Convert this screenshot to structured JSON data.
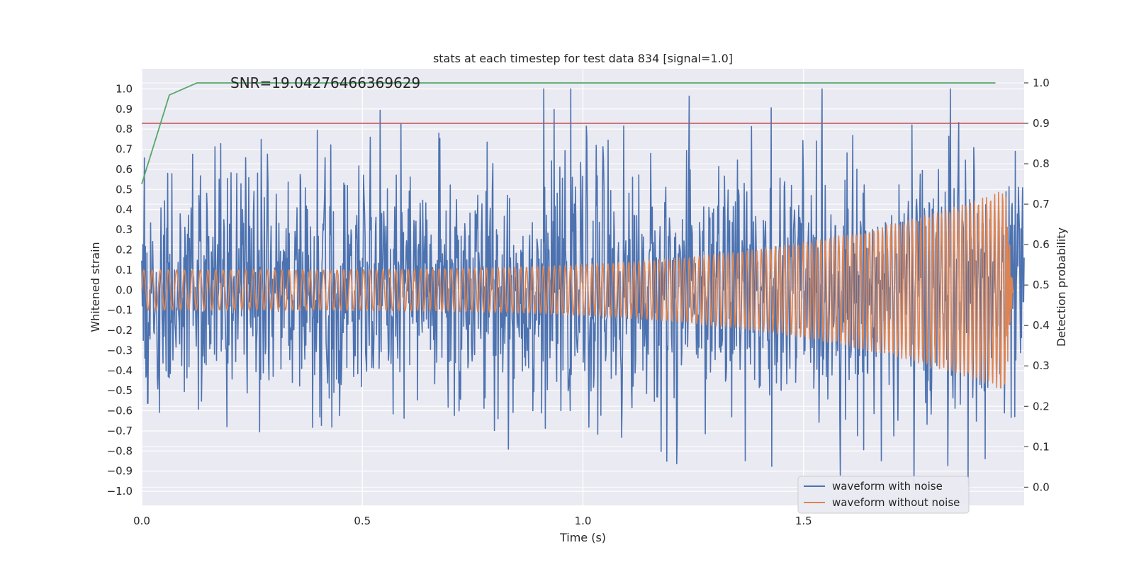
{
  "chart_data": {
    "type": "line",
    "title": "stats at each timestep for test data 834 [signal=1.0]",
    "xlabel": "Time (s)",
    "ylabel": "Whitened strain",
    "y2label": "Detection probability",
    "annotation": "SNR=19.04276466369629",
    "xlim": [
      0.0,
      2.0
    ],
    "ylim": [
      -1.07,
      1.1
    ],
    "y2lim": [
      -0.045,
      1.035
    ],
    "x_ticks": [
      0.0,
      0.5,
      1.0,
      1.5
    ],
    "x_tick_labels": [
      "0.0",
      "0.5",
      "1.0",
      "1.5"
    ],
    "y_ticks": [
      1.0,
      0.9,
      0.8,
      0.7,
      0.6,
      0.5,
      0.4,
      0.3,
      0.2,
      0.1,
      0.0,
      -0.1,
      -0.2,
      -0.3,
      -0.4,
      -0.5,
      -0.6,
      -0.7,
      -0.8,
      -0.9,
      -1.0
    ],
    "y_tick_labels": [
      "1.0",
      "0.9",
      "0.8",
      "0.7",
      "0.6",
      "0.5",
      "0.4",
      "0.3",
      "0.2",
      "0.1",
      "0.0",
      "−0.1",
      "−0.2",
      "−0.3",
      "−0.4",
      "−0.5",
      "−0.6",
      "−0.7",
      "−0.8",
      "−0.9",
      "−1.0"
    ],
    "y2_ticks": [
      1.0,
      0.9,
      0.8,
      0.7,
      0.6,
      0.5,
      0.4,
      0.3,
      0.2,
      0.1,
      0.0
    ],
    "y2_tick_labels": [
      "1.0",
      "0.9",
      "0.8",
      "0.7",
      "0.6",
      "0.5",
      "0.4",
      "0.3",
      "0.2",
      "0.1",
      "0.0"
    ],
    "threshold": {
      "value": 0.9,
      "axis": "right",
      "color": "#c44e52"
    },
    "series": [
      {
        "name": "waveform with noise",
        "color": "#4c72b0",
        "axis": "left",
        "kind": "noisy-strain",
        "x_start": 0.0,
        "x_end": 2.0,
        "points": 1700,
        "std": 0.3,
        "amplitude_start": 0.1,
        "amplitude_end": 0.32
      },
      {
        "name": "waveform without noise",
        "color": "#dd8452",
        "axis": "left",
        "kind": "chirp",
        "x_start": 0.0,
        "x_end": 1.958,
        "points": 1800,
        "amplitude_start": 0.1,
        "amplitude_end": 0.5,
        "cycles": 160,
        "ringdown_end": 1.975
      },
      {
        "name": "detection probability",
        "color": "#55a868",
        "axis": "right",
        "x": [
          0.0,
          0.0625,
          0.125,
          0.1875,
          0.25,
          1.935
        ],
        "y": [
          0.75,
          0.97,
          1.0,
          1.0,
          1.0,
          1.0
        ]
      }
    ],
    "legend": {
      "position": "lower-right",
      "entries": [
        {
          "label": "waveform with noise",
          "color": "#4c72b0"
        },
        {
          "label": "waveform without noise",
          "color": "#dd8452"
        }
      ]
    },
    "grid": true
  }
}
